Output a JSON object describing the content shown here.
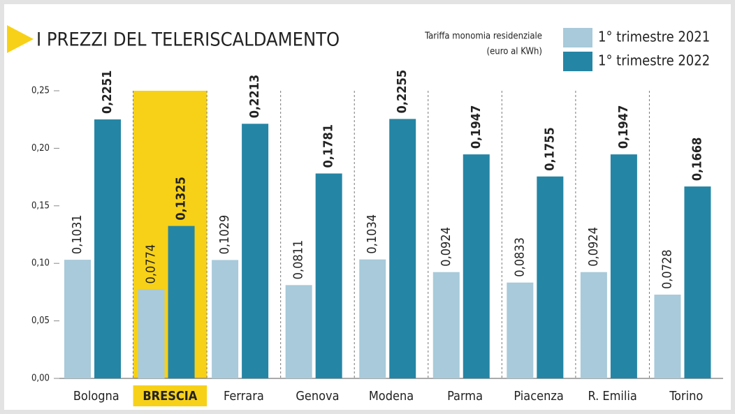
{
  "chart_data": {
    "type": "bar",
    "title": "I PREZZI DEL TELERISCALDAMENTO",
    "subtitle": [
      "Tariffa monomia residenziale",
      "(euro al KWh)"
    ],
    "categories": [
      "Bologna",
      "BRESCIA",
      "Ferrara",
      "Genova",
      "Modena",
      "Parma",
      "Piacenza",
      "R. Emilia",
      "Torino"
    ],
    "series": [
      {
        "name": "1° trimestre 2021",
        "color": "#a8cada",
        "values": [
          0.1031,
          0.0774,
          0.1029,
          0.0811,
          0.1034,
          0.0924,
          0.0833,
          0.0924,
          0.0728
        ],
        "value_labels": [
          "0,1031",
          "0,0774",
          "0,1029",
          "0,0811",
          "0,1034",
          "0,0924",
          "0,0833",
          "0,0924",
          "0,0728"
        ]
      },
      {
        "name": "1° trimestre 2022",
        "color": "#2585a5",
        "values": [
          0.2251,
          0.1325,
          0.2213,
          0.1781,
          0.2255,
          0.1947,
          0.1755,
          0.1947,
          0.1668
        ],
        "value_labels": [
          "0,2251",
          "0,1325",
          "0,2213",
          "0,1781",
          "0,2255",
          "0,1947",
          "0,1755",
          "0,1947",
          "0,1668"
        ]
      }
    ],
    "ylim": [
      0,
      0.25
    ],
    "yticks": [
      {
        "value": 0,
        "label": "0,00"
      },
      {
        "value": 0.05,
        "label": "0,05"
      },
      {
        "value": 0.1,
        "label": "0,10"
      },
      {
        "value": 0.15,
        "label": "0,15"
      },
      {
        "value": 0.2,
        "label": "0,20"
      },
      {
        "value": 0.25,
        "label": "0,25"
      }
    ],
    "highlight_index": 1,
    "highlight_color": "#f7d117"
  }
}
